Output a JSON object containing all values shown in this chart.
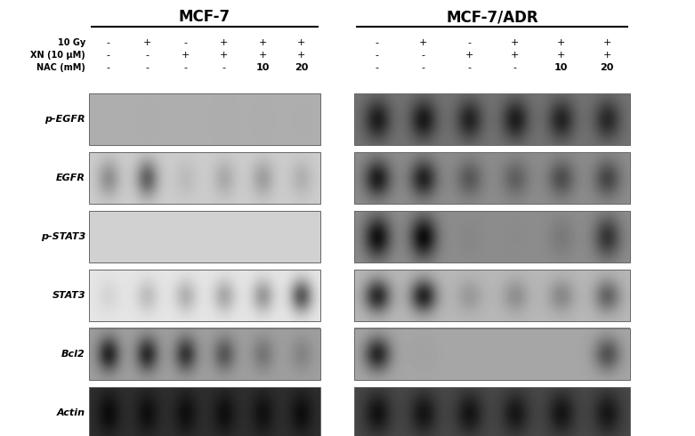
{
  "title_mcf7": "MCF-7",
  "title_mcfadr": "MCF-7/ADR",
  "row_labels": [
    "p-EGFR",
    "EGFR",
    "p-STAT3",
    "STAT3",
    "Bcl2",
    "Actin"
  ],
  "treatment_labels": [
    "10 Gy",
    "XN (10 μM)",
    "NAC (mM)"
  ],
  "mcf7_treatments": [
    [
      "-",
      "+",
      "-",
      "+",
      "+",
      "+"
    ],
    [
      "-",
      "-",
      "+",
      "+",
      "+",
      "+"
    ],
    [
      "-",
      "-",
      "-",
      "-",
      "10",
      "20"
    ]
  ],
  "mcfadr_treatments": [
    [
      "-",
      "+",
      "-",
      "+",
      "+",
      "+"
    ],
    [
      "-",
      "-",
      "+",
      "+",
      "+",
      "+"
    ],
    [
      "-",
      "-",
      "-",
      "-",
      "10",
      "20"
    ]
  ],
  "panels": {
    "p-EGFR": {
      "mcf7_bg": 0.68,
      "mcf7_bands": [
        0.04,
        0.06,
        0.04,
        0.08,
        0.06,
        0.05
      ],
      "mcfadr_bg": 0.45,
      "mcfadr_bands": [
        0.88,
        0.9,
        0.85,
        0.88,
        0.85,
        0.82
      ]
    },
    "EGFR": {
      "mcf7_bg": 0.8,
      "mcf7_bands": [
        0.55,
        0.72,
        0.3,
        0.42,
        0.48,
        0.38
      ],
      "mcfadr_bg": 0.55,
      "mcfadr_bands": [
        0.9,
        0.88,
        0.62,
        0.58,
        0.68,
        0.72
      ]
    },
    "p-STAT3": {
      "mcf7_bg": 0.82,
      "mcf7_bands": [
        0.03,
        0.03,
        0.03,
        0.03,
        0.03,
        0.03
      ],
      "mcfadr_bg": 0.55,
      "mcfadr_bands": [
        0.95,
        0.97,
        0.22,
        0.14,
        0.38,
        0.8
      ]
    },
    "STAT3": {
      "mcf7_bg": 0.9,
      "mcf7_bands": [
        0.28,
        0.42,
        0.48,
        0.52,
        0.58,
        0.78
      ],
      "mcfadr_bg": 0.72,
      "mcfadr_bands": [
        0.88,
        0.9,
        0.42,
        0.48,
        0.52,
        0.68
      ]
    },
    "Bcl2": {
      "mcf7_bg": 0.62,
      "mcf7_bands": [
        0.88,
        0.86,
        0.82,
        0.68,
        0.52,
        0.42
      ],
      "mcfadr_bg": 0.65,
      "mcfadr_bands": [
        0.88,
        0.18,
        0.04,
        0.04,
        0.04,
        0.72
      ]
    },
    "Actin": {
      "mcf7_bg": 0.18,
      "mcf7_bands": [
        0.92,
        0.88,
        0.88,
        0.88,
        0.86,
        0.9
      ],
      "mcfadr_bg": 0.28,
      "mcfadr_bands": [
        0.9,
        0.88,
        0.88,
        0.86,
        0.88,
        0.86
      ]
    }
  },
  "band_heights": {
    "p-EGFR": 0.6,
    "EGFR": 0.55,
    "p-STAT3": 0.62,
    "STAT3": 0.5,
    "Bcl2": 0.5,
    "Actin": 0.62
  }
}
